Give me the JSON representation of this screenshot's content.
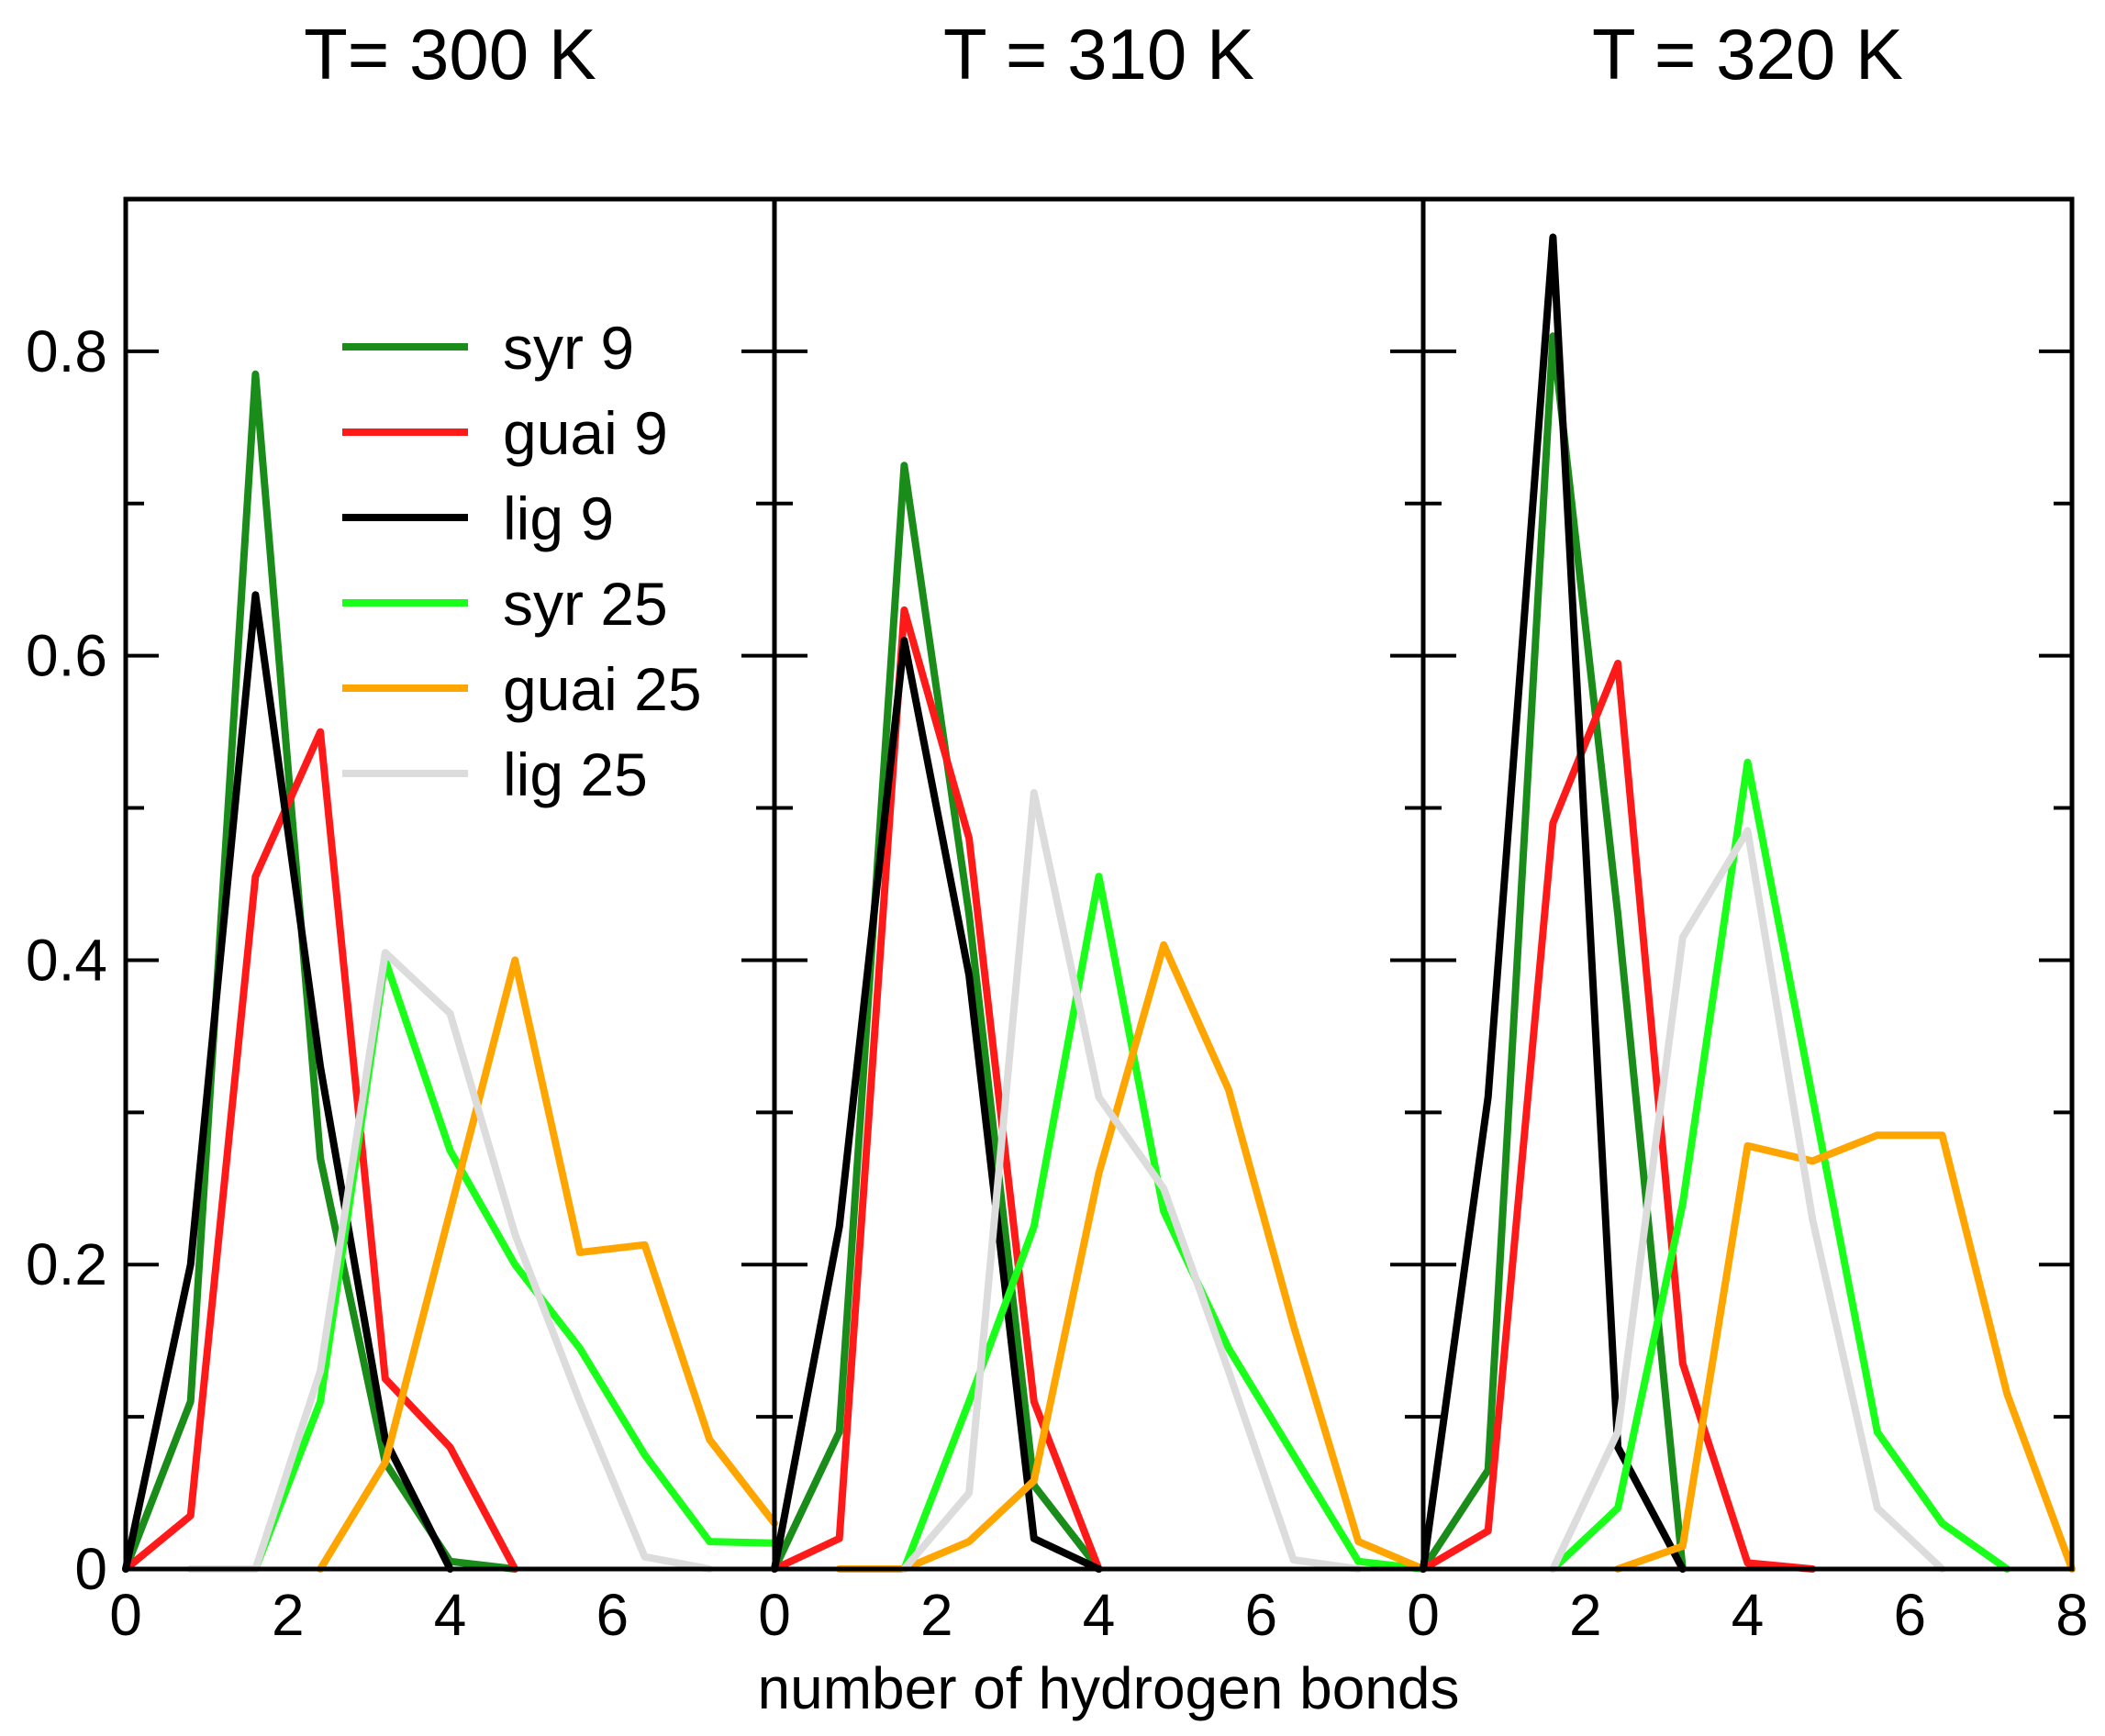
{
  "chart_data": {
    "type": "line",
    "xlabel": "number of hydrogen bonds",
    "ylabel": "",
    "ylim": [
      0,
      0.9
    ],
    "y_ticks": [
      0,
      0.2,
      0.4,
      0.6,
      0.8
    ],
    "y_tick_labels": [
      "0",
      "0.2",
      "0.4",
      "0.6",
      "0.8"
    ],
    "legend_position": "top-left of first panel",
    "legend": [
      {
        "name": "syr 9",
        "color": "#1a8c1a"
      },
      {
        "name": "guai 9",
        "color": "#ff1a1a"
      },
      {
        "name": "lig 9",
        "color": "#000000"
      },
      {
        "name": "syr 25",
        "color": "#1aff1a"
      },
      {
        "name": "guai 25",
        "color": "#ffa500"
      },
      {
        "name": "lig 25",
        "color": "#dcdcdc"
      }
    ],
    "panels": [
      {
        "title": "T= 300 K",
        "xlim": [
          0,
          8
        ],
        "x_tick_values": [
          0,
          2,
          4,
          6
        ],
        "x_tick_labels": [
          "0",
          "2",
          "4",
          "6"
        ],
        "series": [
          {
            "name": "syr 9",
            "color": "#1a8c1a",
            "x": [
              0,
              0.8,
              1.6,
              2.4,
              3.2,
              4.0,
              4.8
            ],
            "y": [
              0,
              0.11,
              0.785,
              0.27,
              0.07,
              0.005,
              0
            ]
          },
          {
            "name": "guai 9",
            "color": "#ff1a1a",
            "x": [
              0,
              0.8,
              1.6,
              2.4,
              3.2,
              4.0,
              4.8
            ],
            "y": [
              0,
              0.035,
              0.455,
              0.55,
              0.125,
              0.08,
              0
            ]
          },
          {
            "name": "lig 9",
            "color": "#000000",
            "x": [
              0,
              0.8,
              1.6,
              2.4,
              3.2,
              4.0
            ],
            "y": [
              0,
              0.2,
              0.64,
              0.33,
              0.085,
              0
            ]
          },
          {
            "name": "syr 25",
            "color": "#1aff1a",
            "x": [
              0.8,
              1.6,
              2.4,
              3.2,
              4.0,
              4.8,
              5.6,
              6.4,
              7.2,
              8.0
            ],
            "y": [
              0,
              0,
              0.11,
              0.4,
              0.275,
              0.2,
              0.145,
              0.075,
              0.018,
              0.017
            ]
          },
          {
            "name": "guai 25",
            "color": "#ffa500",
            "x": [
              2.4,
              3.2,
              4.0,
              4.8,
              5.6,
              6.4,
              7.2,
              8.0
            ],
            "y": [
              0,
              0.07,
              0.235,
              0.4,
              0.208,
              0.213,
              0.085,
              0.03
            ]
          },
          {
            "name": "lig 25",
            "color": "#dcdcdc",
            "x": [
              0.8,
              1.6,
              2.4,
              3.2,
              4.0,
              4.8,
              5.6,
              6.4,
              7.2
            ],
            "y": [
              0,
              0,
              0.13,
              0.405,
              0.365,
              0.22,
              0.11,
              0.008,
              0
            ]
          }
        ]
      },
      {
        "title": "T = 310 K",
        "xlim": [
          0,
          8
        ],
        "x_tick_values": [
          0,
          2,
          4,
          6
        ],
        "x_tick_labels": [
          "0",
          "2",
          "4",
          "6"
        ],
        "series": [
          {
            "name": "syr 9",
            "color": "#1a8c1a",
            "x": [
              0,
              0.8,
              1.6,
              2.4,
              3.2,
              4.0
            ],
            "y": [
              0,
              0.09,
              0.725,
              0.43,
              0.055,
              0
            ]
          },
          {
            "name": "guai 9",
            "color": "#ff1a1a",
            "x": [
              0,
              0.8,
              1.6,
              2.4,
              3.2,
              4.0
            ],
            "y": [
              0,
              0.02,
              0.63,
              0.48,
              0.11,
              0
            ]
          },
          {
            "name": "lig 9",
            "color": "#000000",
            "x": [
              0,
              0.8,
              1.6,
              2.4,
              3.2,
              4.0
            ],
            "y": [
              0,
              0.225,
              0.61,
              0.39,
              0.02,
              0
            ]
          },
          {
            "name": "syr 25",
            "color": "#1aff1a",
            "x": [
              1.6,
              2.4,
              3.2,
              4.0,
              4.8,
              5.6,
              6.4,
              7.2,
              8.0
            ],
            "y": [
              0,
              0.11,
              0.225,
              0.455,
              0.235,
              0.145,
              0.075,
              0.005,
              0
            ]
          },
          {
            "name": "guai 25",
            "color": "#ffa500",
            "x": [
              0.8,
              1.6,
              2.4,
              3.2,
              4.0,
              4.8,
              5.6,
              6.4,
              7.2,
              8.0
            ],
            "y": [
              0,
              0,
              0.018,
              0.058,
              0.26,
              0.41,
              0.315,
              0.16,
              0.018,
              0
            ]
          },
          {
            "name": "lig 25",
            "color": "#dcdcdc",
            "x": [
              1.6,
              2.4,
              3.2,
              4.0,
              4.8,
              5.6,
              6.4,
              7.2
            ],
            "y": [
              0,
              0.05,
              0.51,
              0.31,
              0.25,
              0.13,
              0.006,
              0
            ]
          }
        ]
      },
      {
        "title": "T = 320 K",
        "xlim": [
          0,
          8
        ],
        "x_tick_values": [
          0,
          2,
          4,
          6,
          8
        ],
        "x_tick_labels": [
          "0",
          "2",
          "4",
          "6",
          "8"
        ],
        "series": [
          {
            "name": "syr 9",
            "color": "#1a8c1a",
            "x": [
              0,
              0.8,
              1.6,
              2.4,
              3.2
            ],
            "y": [
              0,
              0.065,
              0.81,
              0.43,
              0
            ]
          },
          {
            "name": "guai 9",
            "color": "#ff1a1a",
            "x": [
              0,
              0.8,
              1.6,
              2.4,
              3.2,
              4.0,
              4.8
            ],
            "y": [
              0,
              0.025,
              0.49,
              0.595,
              0.135,
              0.004,
              0
            ]
          },
          {
            "name": "lig 9",
            "color": "#000000",
            "x": [
              0,
              0.8,
              1.6,
              2.4,
              3.2
            ],
            "y": [
              0,
              0.31,
              0.875,
              0.08,
              0
            ]
          },
          {
            "name": "syr 25",
            "color": "#1aff1a",
            "x": [
              1.6,
              2.4,
              3.2,
              4.0,
              4.8,
              5.6,
              6.4,
              7.2
            ],
            "y": [
              0,
              0.04,
              0.24,
              0.53,
              0.31,
              0.09,
              0.03,
              0
            ]
          },
          {
            "name": "guai 25",
            "color": "#ffa500",
            "x": [
              2.4,
              3.2,
              4.0,
              4.8,
              5.6,
              6.4,
              7.2,
              8.0
            ],
            "y": [
              0,
              0.015,
              0.278,
              0.268,
              0.285,
              0.285,
              0.115,
              0
            ]
          },
          {
            "name": "lig 25",
            "color": "#dcdcdc",
            "x": [
              1.6,
              2.4,
              3.2,
              4.0,
              4.8,
              5.6,
              6.4
            ],
            "y": [
              0,
              0.09,
              0.415,
              0.485,
              0.23,
              0.04,
              0
            ]
          }
        ]
      }
    ]
  }
}
